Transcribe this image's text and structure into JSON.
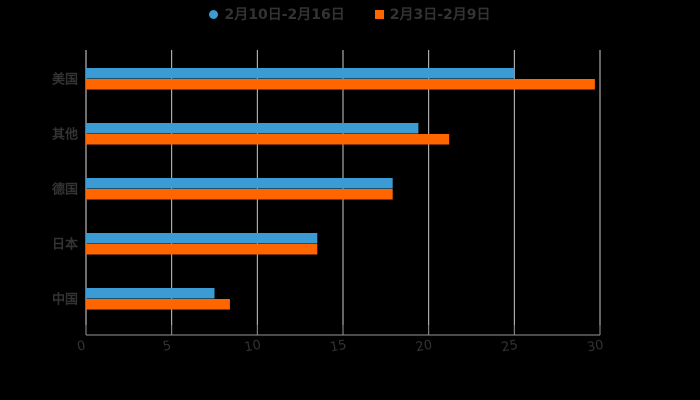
{
  "legend": {
    "series0": "2月10日-2月16日",
    "series1": "2月3日-2月9日"
  },
  "colors": {
    "series0": "#3a9bd5",
    "series1": "#ff6600",
    "grid": "#cccccc",
    "text": "#333333",
    "background": "#000000"
  },
  "chart_data": {
    "type": "bar",
    "orientation": "horizontal",
    "title": "",
    "xlabel": "",
    "ylabel": "",
    "categories": [
      "美国",
      "其他",
      "德国",
      "日本",
      "中国"
    ],
    "series": [
      {
        "name": "2月10日-2月16日",
        "color": "#3a9bd5",
        "values": [
          25,
          19.4,
          17.9,
          13.5,
          7.5
        ]
      },
      {
        "name": "2月3日-2月9日",
        "color": "#ff6600",
        "values": [
          29.7,
          21.2,
          17.9,
          13.5,
          8.4
        ]
      }
    ],
    "xlim": [
      0,
      30
    ],
    "x_ticks": [
      "0",
      "5",
      "10",
      "15",
      "20",
      "25",
      "30"
    ],
    "grid": true,
    "legend_position": "top"
  }
}
